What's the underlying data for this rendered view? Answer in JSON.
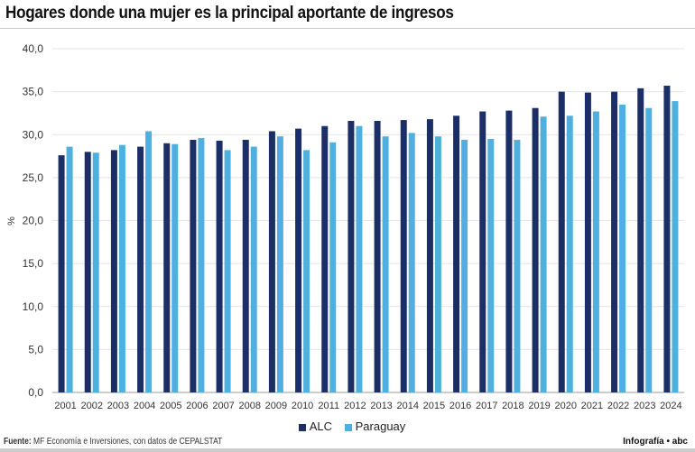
{
  "title": "Hogares donde una mujer es la principal aportante de ingresos",
  "source_label": "Fuente:",
  "source_text": "MF Economía e Inversiones, con datos de CEPALSTAT",
  "credit": "Infografía • abc",
  "chart_data": {
    "type": "bar",
    "title": "Hogares donde una mujer es la principal aportante de ingresos",
    "xlabel": "",
    "ylabel": "%",
    "ylim": [
      0,
      40
    ],
    "yticks": [
      "0,0",
      "5,0",
      "10,0",
      "15,0",
      "20,0",
      "25,0",
      "30,0",
      "35,0",
      "40,0"
    ],
    "grid": true,
    "legend": "bottom",
    "categories": [
      "2001",
      "2002",
      "2003",
      "2004",
      "2005",
      "2006",
      "2007",
      "2008",
      "2009",
      "2010",
      "2011",
      "2012",
      "2013",
      "2014",
      "2015",
      "2016",
      "2017",
      "2018",
      "2019",
      "2020",
      "2021",
      "2022",
      "2023",
      "2024"
    ],
    "series": [
      {
        "name": "ALC",
        "color": "#1b2f66",
        "values": [
          27.6,
          28.0,
          28.2,
          28.6,
          29.0,
          29.4,
          29.3,
          29.4,
          30.4,
          30.7,
          31.0,
          31.6,
          31.6,
          31.7,
          31.8,
          32.2,
          32.7,
          32.8,
          33.1,
          35.0,
          34.9,
          35.0,
          35.4,
          35.7
        ]
      },
      {
        "name": "Paraguay",
        "color": "#4fb0e0",
        "values": [
          28.6,
          27.9,
          28.8,
          30.4,
          28.9,
          29.6,
          28.2,
          28.6,
          29.8,
          28.2,
          29.1,
          31.0,
          29.8,
          30.2,
          29.8,
          29.4,
          29.5,
          29.4,
          32.1,
          32.2,
          32.7,
          33.5,
          33.1,
          33.9
        ]
      }
    ]
  }
}
